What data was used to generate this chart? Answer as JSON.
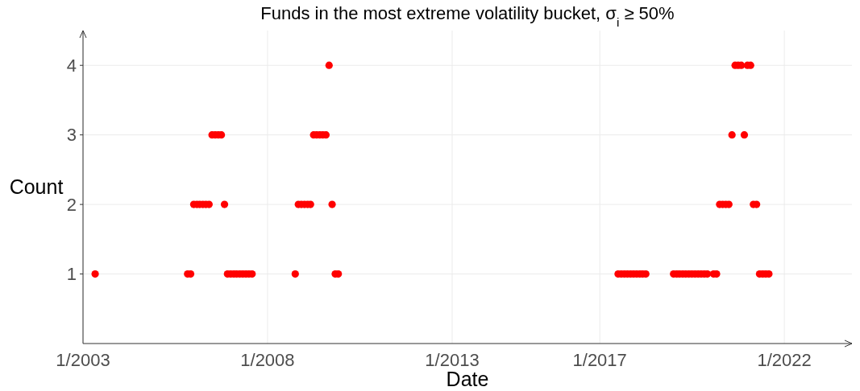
{
  "chart_data": {
    "type": "scatter",
    "title": "Funds in the most extreme volatility bucket, σ$_{i}$ ≥ 50%",
    "xlabel": "Date",
    "ylabel": "Count",
    "xlim": [
      "2003-01",
      "2023-11"
    ],
    "xticks": [
      {
        "value": "2003-01",
        "label": "1/2003"
      },
      {
        "value": "2008-01",
        "label": "1/2008"
      },
      {
        "value": "2013-01",
        "label": "1/2013"
      },
      {
        "value": "2017-01",
        "label": "1/2017"
      },
      {
        "value": "2022-01",
        "label": "1/2022"
      }
    ],
    "ylim": [
      0,
      4.5
    ],
    "yticks": [
      1,
      2,
      3,
      4
    ],
    "grid": true,
    "marker": "circle",
    "series": [
      {
        "color": "#ff0000",
        "x": [
          "2003-05",
          "2005-11",
          "2005-12",
          "2006-01",
          "2006-02",
          "2006-03",
          "2006-04",
          "2006-05",
          "2006-06",
          "2006-07",
          "2006-08",
          "2006-09",
          "2006-10",
          "2006-11",
          "2006-12",
          "2007-01",
          "2007-02",
          "2007-03",
          "2007-04",
          "2007-05",
          "2007-06",
          "2007-07",
          "2007-08",
          "2008-10",
          "2008-11",
          "2008-12",
          "2009-01",
          "2009-02",
          "2009-03",
          "2009-04",
          "2009-05",
          "2009-06",
          "2009-07",
          "2009-08",
          "2009-09",
          "2009-10",
          "2009-11",
          "2009-12",
          "2017-07",
          "2017-08",
          "2017-09",
          "2017-10",
          "2017-11",
          "2017-12",
          "2018-01",
          "2018-02",
          "2018-03",
          "2018-04",
          "2019-01",
          "2019-02",
          "2019-03",
          "2019-04",
          "2019-05",
          "2019-06",
          "2019-07",
          "2019-08",
          "2019-09",
          "2019-10",
          "2019-11",
          "2019-12",
          "2020-02",
          "2020-03",
          "2020-04",
          "2020-05",
          "2020-06",
          "2020-07",
          "2020-08",
          "2020-09",
          "2020-10",
          "2020-11",
          "2020-12",
          "2021-01",
          "2021-02",
          "2021-03",
          "2021-04",
          "2021-05",
          "2021-06",
          "2021-07",
          "2021-08"
        ],
        "values": [
          1,
          1,
          1,
          2,
          2,
          2,
          2,
          2,
          2,
          3,
          3,
          3,
          3,
          2,
          1,
          1,
          1,
          1,
          1,
          1,
          1,
          1,
          1,
          1,
          2,
          2,
          2,
          2,
          2,
          3,
          3,
          3,
          3,
          3,
          4,
          2,
          1,
          1,
          1,
          1,
          1,
          1,
          1,
          1,
          1,
          1,
          1,
          1,
          1,
          1,
          1,
          1,
          1,
          1,
          1,
          1,
          1,
          1,
          1,
          1,
          1,
          1,
          2,
          2,
          2,
          2,
          3,
          4,
          4,
          4,
          3,
          4,
          4,
          2,
          2,
          1,
          1,
          1,
          1
        ]
      }
    ]
  }
}
